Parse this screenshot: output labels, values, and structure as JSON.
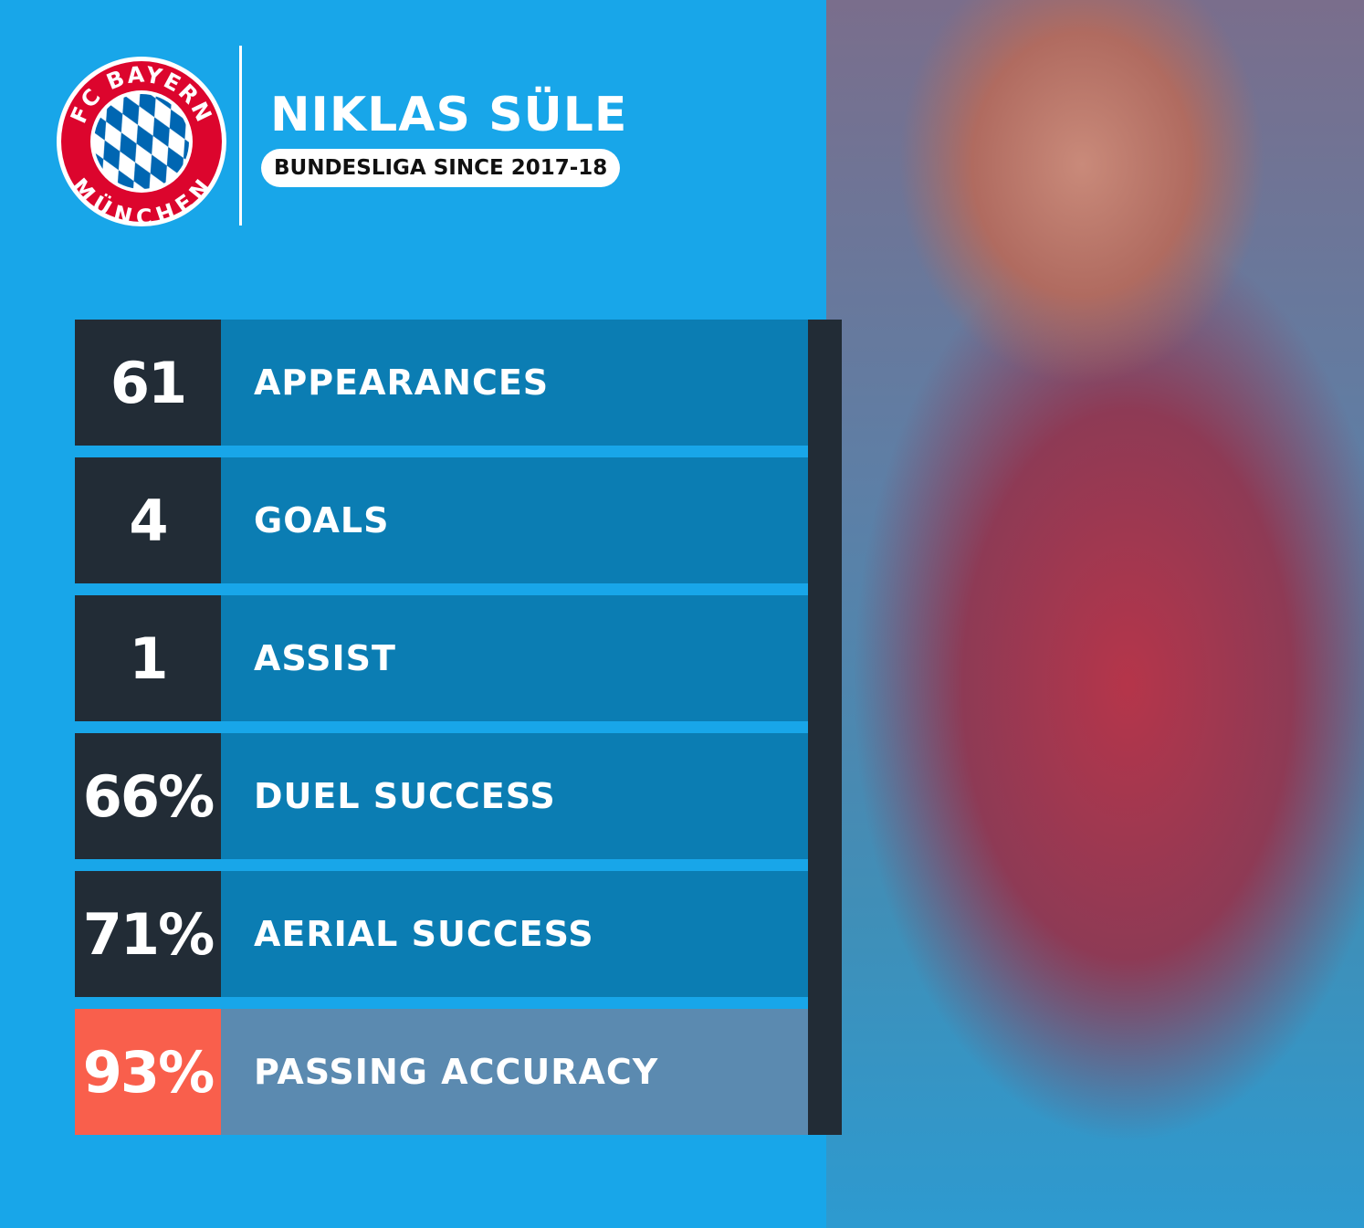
{
  "logo": {
    "top_text": "FC BAYERN",
    "bottom_text": "MÜNCHEN",
    "colors": {
      "red": "#dc052d",
      "blue": "#0066b2"
    }
  },
  "player": {
    "name": "NIKLAS SÜLE",
    "subtitle": "BUNDESLIGA SINCE 2017-18"
  },
  "stats": [
    {
      "value": "61",
      "label": "APPEARANCES"
    },
    {
      "value": "4",
      "label": "GOALS"
    },
    {
      "value": "1",
      "label": "ASSIST"
    },
    {
      "value": "66%",
      "label": "DUEL SUCCESS"
    },
    {
      "value": "71%",
      "label": "AERIAL SUCCESS"
    },
    {
      "value": "93%",
      "label": "PASSING ACCURACY",
      "highlight": true
    }
  ],
  "colors": {
    "background": "#18a6e9",
    "dark": "#222c36",
    "label_bg": "#0b7db3",
    "highlight": "#f95f4c",
    "highlight_label": "#5b8ab0"
  }
}
